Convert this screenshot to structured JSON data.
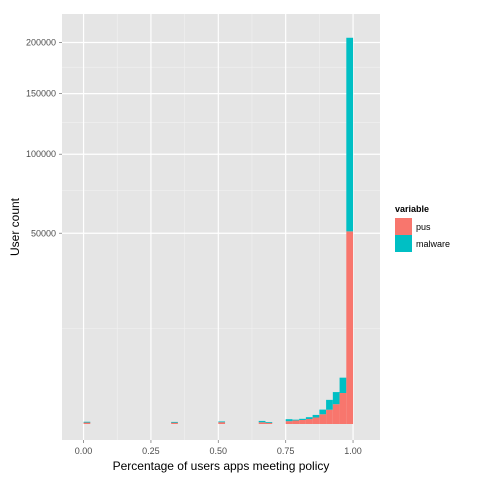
{
  "chart_data": {
    "type": "bar",
    "subtype": "stacked-histogram",
    "title": "",
    "xlabel": "Percentage of users apps meeting policy",
    "ylabel": "User count",
    "xlim": [
      -0.08,
      1.1
    ],
    "ylim_sqrt_scale": true,
    "ylim": [
      0,
      231000
    ],
    "x_ticks": [
      {
        "value": 0.0,
        "label": "0.00"
      },
      {
        "value": 0.25,
        "label": "0.25"
      },
      {
        "value": 0.5,
        "label": "0.50"
      },
      {
        "value": 0.75,
        "label": "0.75"
      },
      {
        "value": 1.0,
        "label": "1.00"
      }
    ],
    "y_ticks": [
      {
        "value": 50000,
        "label": "50000"
      },
      {
        "value": 100000,
        "label": "100000"
      },
      {
        "value": 150000,
        "label": "150000"
      },
      {
        "value": 200000,
        "label": "200000"
      }
    ],
    "grid": true,
    "legend": {
      "title": "variable",
      "placement": "right",
      "entries": [
        {
          "name": "pus",
          "color": "#F8766D"
        },
        {
          "name": "malware",
          "color": "#00BFC4"
        }
      ]
    },
    "bin_width": 0.025,
    "bins": [
      {
        "x0": 0.0,
        "pus": 4,
        "malware": 3
      },
      {
        "x0": 0.325,
        "pus": 3,
        "malware": 3
      },
      {
        "x0": 0.5,
        "pus": 5,
        "malware": 4
      },
      {
        "x0": 0.65,
        "pus": 4,
        "malware": 9
      },
      {
        "x0": 0.675,
        "pus": 3,
        "malware": 2
      },
      {
        "x0": 0.75,
        "pus": 11,
        "malware": 21
      },
      {
        "x0": 0.775,
        "pus": 17,
        "malware": 9
      },
      {
        "x0": 0.8,
        "pus": 22,
        "malware": 15
      },
      {
        "x0": 0.825,
        "pus": 34,
        "malware": 30
      },
      {
        "x0": 0.85,
        "pus": 58,
        "malware": 55
      },
      {
        "x0": 0.875,
        "pus": 130,
        "malware": 155
      },
      {
        "x0": 0.9,
        "pus": 280,
        "malware": 520
      },
      {
        "x0": 0.925,
        "pus": 540,
        "malware": 860
      },
      {
        "x0": 0.95,
        "pus": 1320,
        "malware": 1630
      },
      {
        "x0": 0.975,
        "pus": 51000,
        "malware": 154000
      }
    ]
  },
  "colors": {
    "panel_background": "#E5E5E5",
    "grid_major": "#FFFFFF",
    "grid_minor": "#F2F2F2",
    "pus": "#F8766D",
    "malware": "#00BFC4",
    "tick_text": "#4D4D4D"
  }
}
